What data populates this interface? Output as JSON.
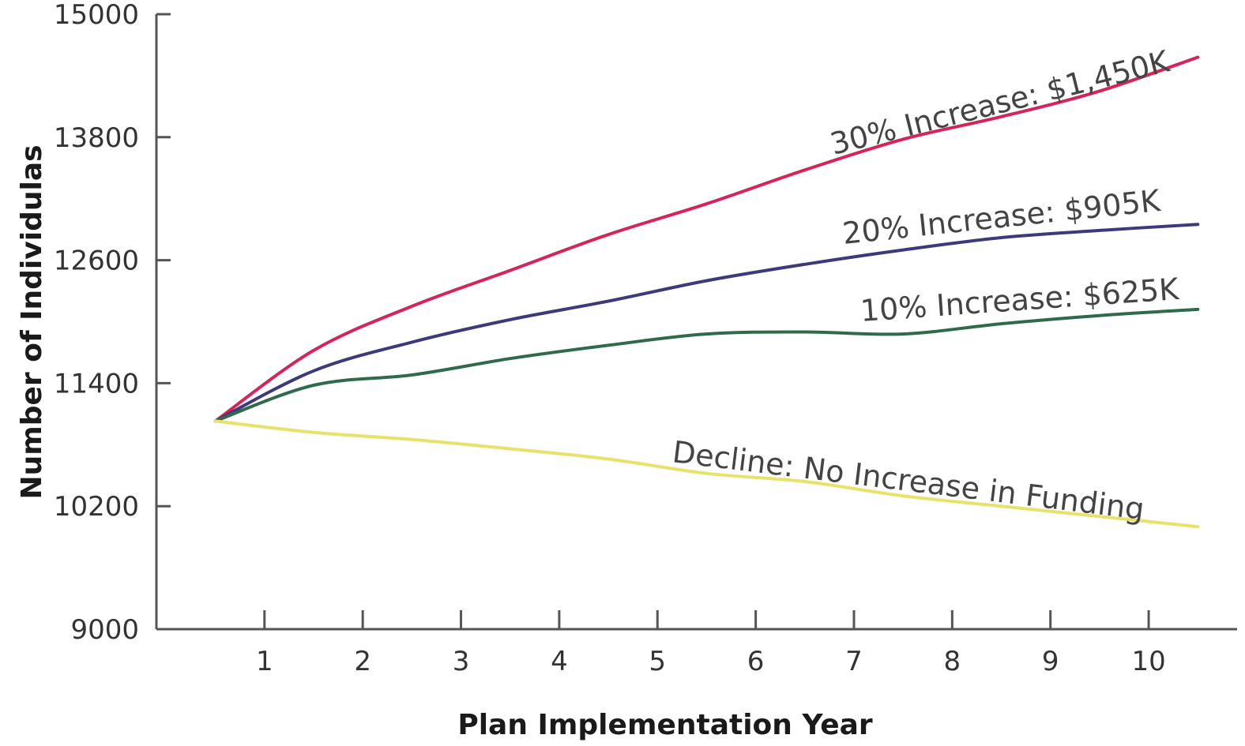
{
  "chart_data": {
    "type": "line",
    "title": "",
    "xlabel": "Plan Implementation Year",
    "ylabel": "Number of Individulas",
    "xlim": [
      -0.1,
      10.9
    ],
    "ylim": [
      9000,
      15000
    ],
    "x_ticks": [
      1,
      2,
      3,
      4,
      5,
      6,
      7,
      8,
      9,
      10
    ],
    "y_ticks": [
      9000,
      10200,
      11400,
      12600,
      13800,
      15000
    ],
    "grid": false,
    "legend": "none",
    "series": [
      {
        "name": "30% Increase: $1,450K",
        "color": "#d6245a",
        "x": [
          0.5,
          1.5,
          2.5,
          3.5,
          4.5,
          5.5,
          6.5,
          7.5,
          8.5,
          9.5,
          10.5
        ],
        "values": [
          11030,
          11720,
          12150,
          12500,
          12850,
          13150,
          13480,
          13780,
          14000,
          14250,
          14580
        ]
      },
      {
        "name": "20% Increase: $905K",
        "color": "#3c3a7a",
        "x": [
          0.5,
          1.5,
          2.5,
          3.5,
          4.5,
          5.5,
          6.5,
          7.5,
          8.5,
          9.5,
          10.5
        ],
        "values": [
          11030,
          11520,
          11800,
          12020,
          12200,
          12400,
          12560,
          12700,
          12820,
          12890,
          12950
        ]
      },
      {
        "name": "10% Increase: $625K",
        "color": "#2f6b4a",
        "x": [
          0.5,
          1.5,
          2.5,
          3.5,
          4.5,
          5.5,
          6.5,
          7.5,
          8.5,
          9.5,
          10.5
        ],
        "values": [
          11030,
          11380,
          11480,
          11640,
          11770,
          11880,
          11900,
          11880,
          11980,
          12060,
          12120
        ]
      },
      {
        "name": "Decline: No Increase in Funding",
        "color": "#e7e36a",
        "x": [
          0.5,
          1.5,
          2.5,
          3.5,
          4.5,
          5.5,
          6.5,
          7.5,
          8.5,
          9.5,
          10.5
        ],
        "values": [
          11030,
          10920,
          10850,
          10760,
          10660,
          10520,
          10440,
          10300,
          10200,
          10100,
          10000
        ]
      }
    ]
  }
}
